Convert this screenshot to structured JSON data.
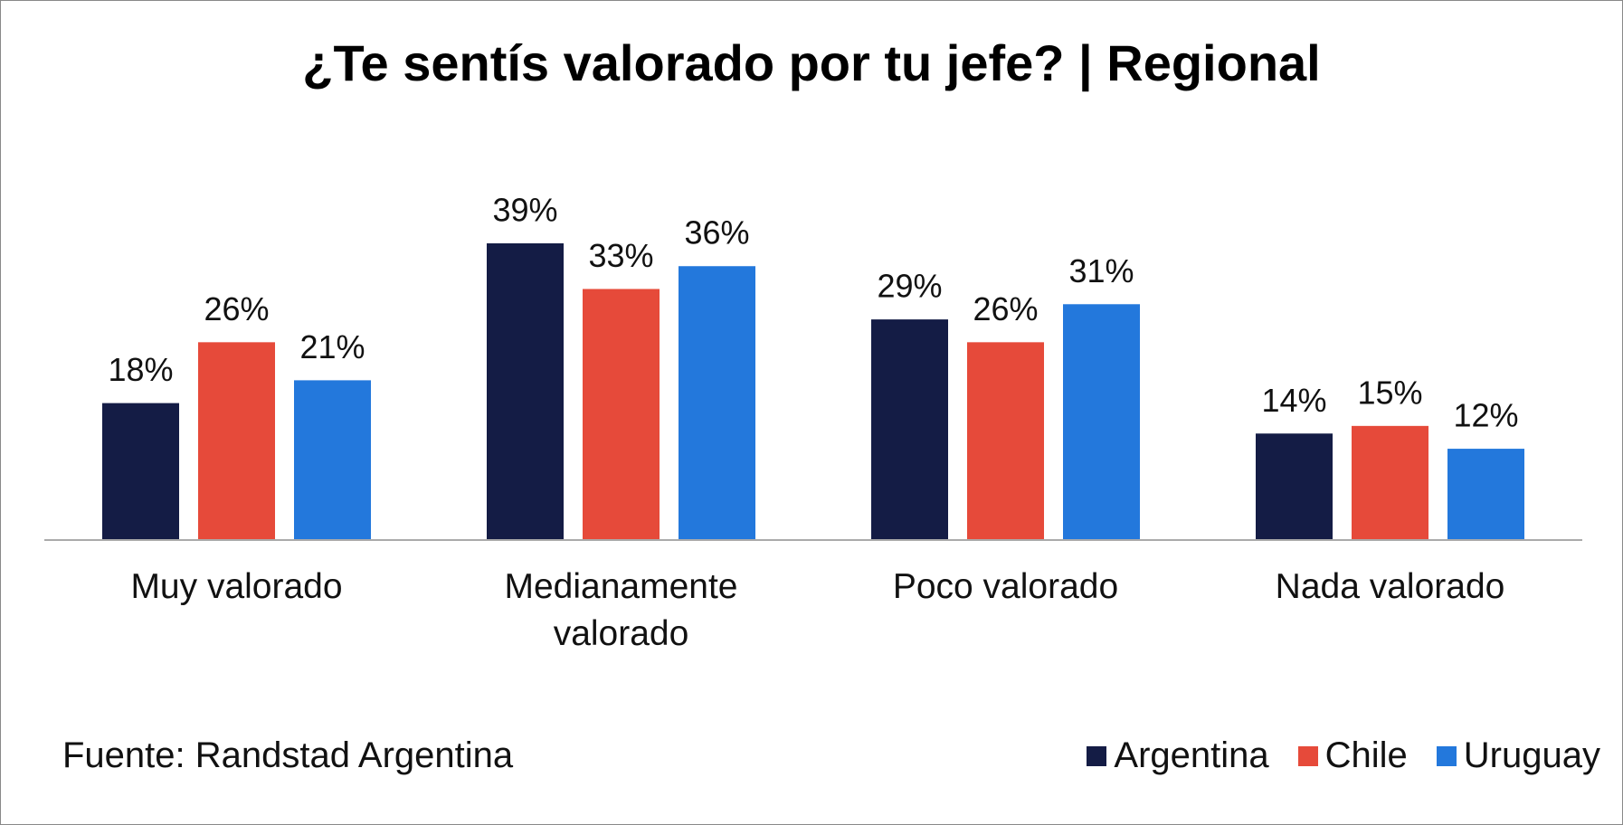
{
  "chart_data": {
    "type": "bar",
    "title": "¿Te sentís valorado por tu jefe? | Regional",
    "categories": [
      "Muy valorado",
      "Medianamente valorado",
      "Poco valorado",
      "Nada valorado"
    ],
    "series": [
      {
        "name": "Argentina",
        "color": "#141c45",
        "values": [
          18,
          39,
          29,
          14
        ],
        "value_labels": [
          "18%",
          "39%",
          "29%",
          "14%"
        ]
      },
      {
        "name": "Chile",
        "color": "#e64a3a",
        "values": [
          26,
          33,
          26,
          15
        ],
        "value_labels": [
          "26%",
          "33%",
          "26%",
          "15%"
        ]
      },
      {
        "name": "Uruguay",
        "color": "#2378dc",
        "values": [
          21,
          36,
          31,
          12
        ],
        "value_labels": [
          "21%",
          "36%",
          "31%",
          "12%"
        ]
      }
    ],
    "source": "Fuente: Randstad Argentina"
  }
}
